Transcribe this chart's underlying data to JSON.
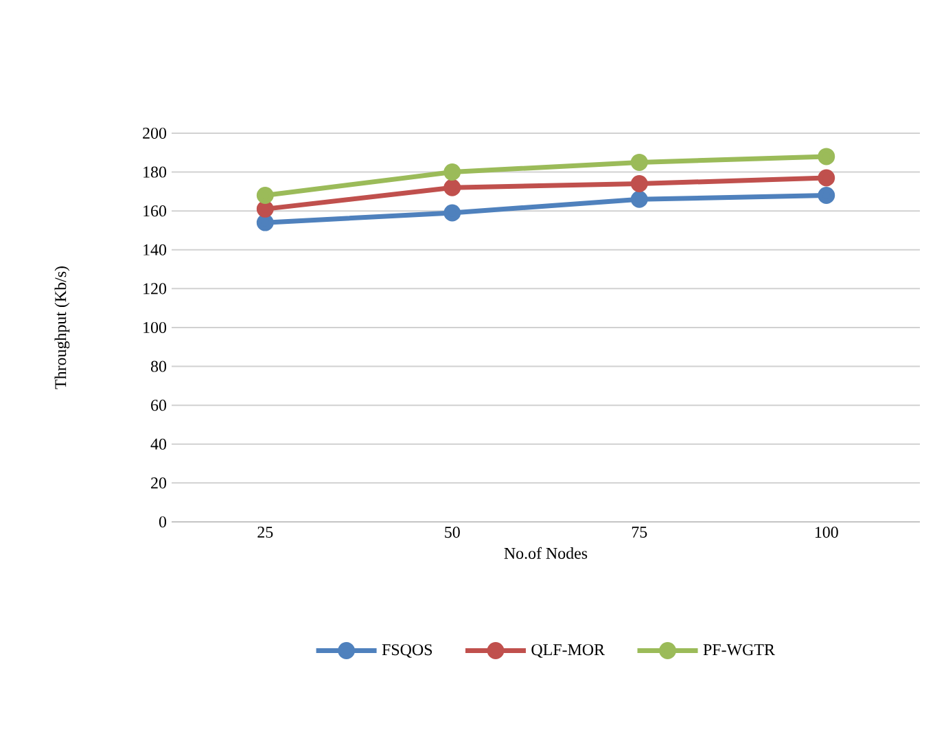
{
  "chart_data": {
    "type": "line",
    "xlabel": "No.of Nodes",
    "ylabel": "Throughput (Kb/s)",
    "categories": [
      "25",
      "50",
      "75",
      "100"
    ],
    "series": [
      {
        "name": "FSQOS",
        "color": "#4f81bd",
        "values": [
          154,
          159,
          166,
          168
        ]
      },
      {
        "name": "QLF-MOR",
        "color": "#c0504d",
        "values": [
          161,
          172,
          174,
          177
        ]
      },
      {
        "name": "PF-WGTR",
        "color": "#9bbb59",
        "values": [
          168,
          180,
          185,
          188
        ]
      }
    ],
    "ylim": [
      0,
      200
    ],
    "yticks": [
      0,
      20,
      40,
      60,
      80,
      100,
      120,
      140,
      160,
      180,
      200
    ],
    "grid": "y",
    "legend": "bottom",
    "marker": "circle",
    "line_style": "solid"
  }
}
